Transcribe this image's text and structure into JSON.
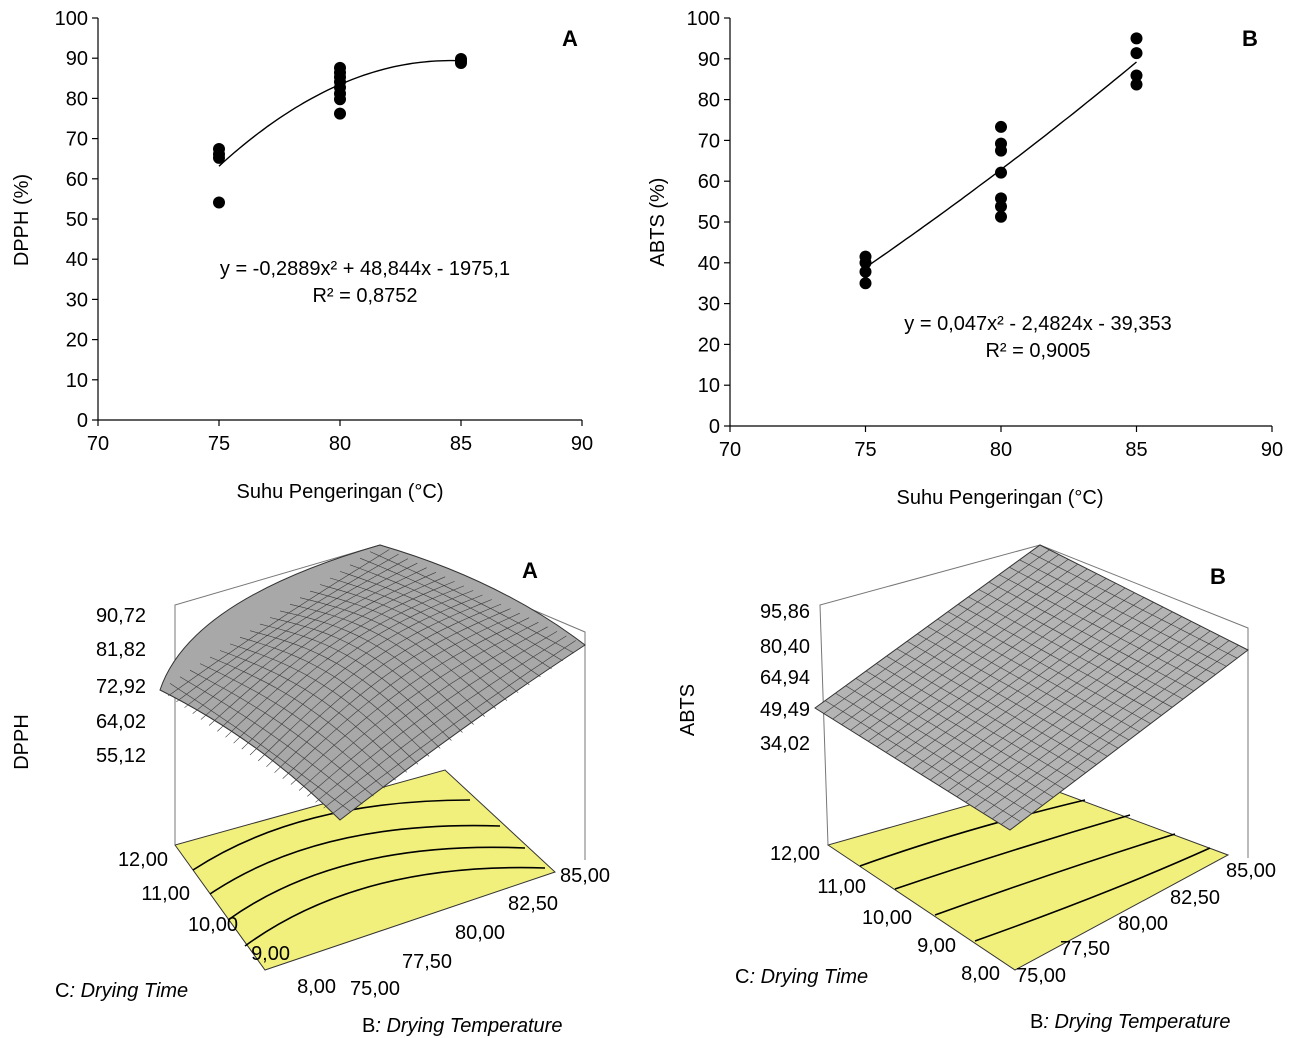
{
  "chart_data": [
    {
      "type": "scatter",
      "panel_label": "A",
      "title": "",
      "xlabel": "Suhu Pengeringan (°C)",
      "ylabel": "DPPH (%)",
      "xlim": [
        70,
        90
      ],
      "ylim": [
        0,
        100
      ],
      "x_ticks": [
        "70",
        "75",
        "80",
        "85",
        "90"
      ],
      "y_ticks": [
        "0",
        "10",
        "20",
        "30",
        "40",
        "50",
        "60",
        "70",
        "80",
        "90",
        "100"
      ],
      "points": [
        {
          "x": 75,
          "y": 54.1
        },
        {
          "x": 75,
          "y": 65.2
        },
        {
          "x": 75,
          "y": 66.1
        },
        {
          "x": 75,
          "y": 67.4
        },
        {
          "x": 80,
          "y": 76.2
        },
        {
          "x": 80,
          "y": 79.8
        },
        {
          "x": 80,
          "y": 81.2
        },
        {
          "x": 80,
          "y": 82.7
        },
        {
          "x": 80,
          "y": 84.1
        },
        {
          "x": 80,
          "y": 85.3
        },
        {
          "x": 80,
          "y": 86.4
        },
        {
          "x": 80,
          "y": 87.6
        },
        {
          "x": 85,
          "y": 88.8
        },
        {
          "x": 85,
          "y": 89.3
        },
        {
          "x": 85,
          "y": 89.8
        }
      ],
      "trendline": {
        "type": "polynomial",
        "coefficients": [
          -0.2889,
          48.844,
          -1975.1
        ],
        "x_range": [
          75,
          85
        ]
      },
      "equation": "y = -0,2889x² + 48,844x - 1975,1",
      "r_squared": "R² = 0,8752",
      "grid": false
    },
    {
      "type": "scatter",
      "panel_label": "B",
      "title": "",
      "xlabel": "Suhu Pengeringan (°C)",
      "ylabel": "ABTS (%)",
      "xlim": [
        70,
        90
      ],
      "ylim": [
        0,
        100
      ],
      "x_ticks": [
        "70",
        "75",
        "80",
        "85",
        "90"
      ],
      "y_ticks": [
        "0",
        "10",
        "20",
        "30",
        "40",
        "50",
        "60",
        "70",
        "80",
        "90",
        "100"
      ],
      "points": [
        {
          "x": 75,
          "y": 35.0
        },
        {
          "x": 75,
          "y": 37.8
        },
        {
          "x": 75,
          "y": 40.0
        },
        {
          "x": 75,
          "y": 41.5
        },
        {
          "x": 80,
          "y": 51.3
        },
        {
          "x": 80,
          "y": 53.8
        },
        {
          "x": 80,
          "y": 55.8
        },
        {
          "x": 80,
          "y": 62.1
        },
        {
          "x": 80,
          "y": 67.5
        },
        {
          "x": 80,
          "y": 69.2
        },
        {
          "x": 80,
          "y": 73.3
        },
        {
          "x": 85,
          "y": 83.7
        },
        {
          "x": 85,
          "y": 85.9
        },
        {
          "x": 85,
          "y": 91.4
        },
        {
          "x": 85,
          "y": 95.0
        }
      ],
      "trendline": {
        "type": "polynomial",
        "coefficients": [
          0.047,
          -2.4824,
          -39.353
        ],
        "x_range": [
          75,
          85
        ]
      },
      "equation": "y = 0,047x² - 2,4824x - 39,353",
      "r_squared": "R² = 0,9005",
      "grid": false
    },
    {
      "type": "surface3d",
      "panel_label": "A",
      "zlabel": "DPPH",
      "xlabel_prefix": "B",
      "xlabel": ": Drying Temperature",
      "ylabel_prefix": "C",
      "ylabel": ": Drying Time",
      "z_ticks": [
        "90,72",
        "81,82",
        "72,92",
        "64,02",
        "55,12"
      ],
      "x_ticks": [
        "75,00",
        "77,50",
        "80,00",
        "82,50",
        "85,00"
      ],
      "y_ticks": [
        "8,00",
        "9,00",
        "10,00",
        "11,00",
        "12,00"
      ],
      "surface_color": "#a8a8a8",
      "floor_color": "#f2f07c",
      "zlim": [
        55.12,
        90.72
      ]
    },
    {
      "type": "surface3d",
      "panel_label": "B",
      "zlabel": "ABTS",
      "xlabel_prefix": "B",
      "xlabel": ": Drying Temperature",
      "ylabel_prefix": "C",
      "ylabel": ": Drying Time",
      "z_ticks": [
        "95,86",
        "80,40",
        "64,94",
        "49,49",
        "34,02"
      ],
      "x_ticks": [
        "75,00",
        "77,50",
        "80,00",
        "82,50",
        "85,00"
      ],
      "y_ticks": [
        "8,00",
        "9,00",
        "10,00",
        "11,00",
        "12,00"
      ],
      "surface_color": "#b4b4b4",
      "floor_color": "#f2f07c",
      "zlim": [
        34.02,
        95.86
      ]
    }
  ]
}
